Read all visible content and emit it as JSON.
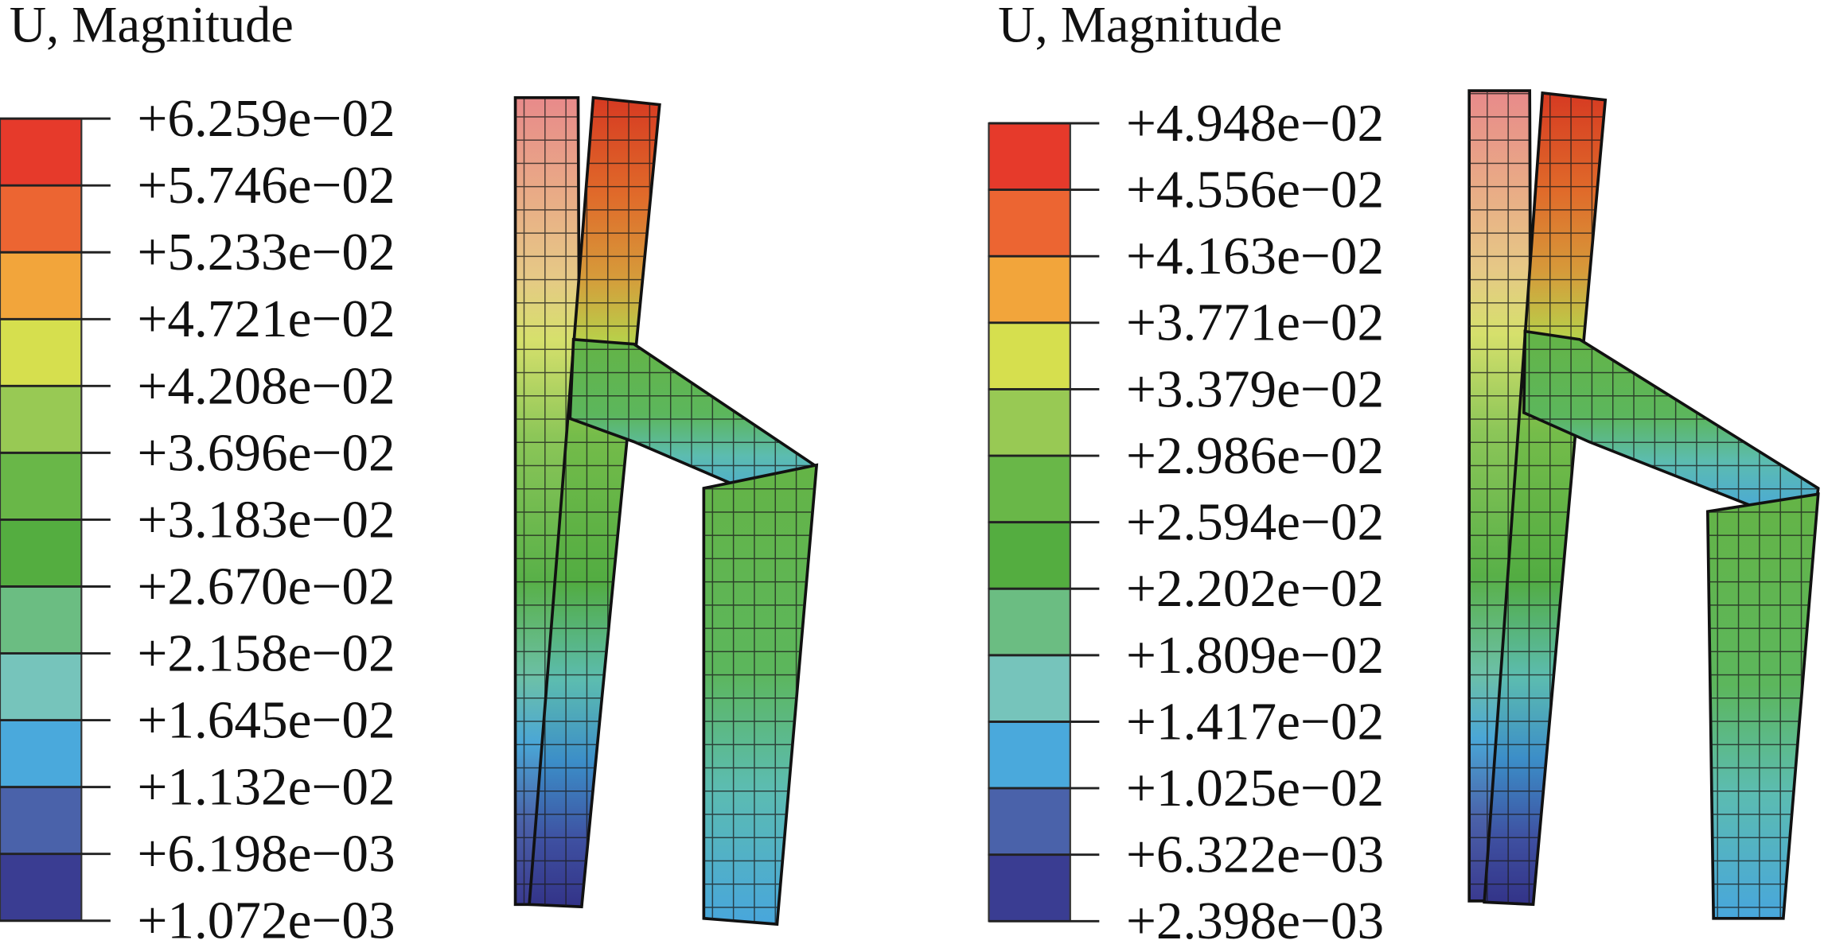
{
  "panels": [
    {
      "title": "U, Magnitude",
      "legend": [
        "+6.259e−02",
        "+5.746e−02",
        "+5.233e−02",
        "+4.721e−02",
        "+4.208e−02",
        "+3.696e−02",
        "+3.183e−02",
        "+2.670e−02",
        "+2.158e−02",
        "+1.645e−02",
        "+1.132e−02",
        "+6.198e−03",
        "+1.072e−03"
      ]
    },
    {
      "title": "U, Magnitude",
      "legend": [
        "+4.948e−02",
        "+4.556e−02",
        "+4.163e−02",
        "+3.771e−02",
        "+3.379e−02",
        "+2.986e−02",
        "+2.594e−02",
        "+2.202e−02",
        "+1.809e−02",
        "+1.417e−02",
        "+1.025e−02",
        "+6.322e−03",
        "+2.398e−03"
      ]
    }
  ]
}
